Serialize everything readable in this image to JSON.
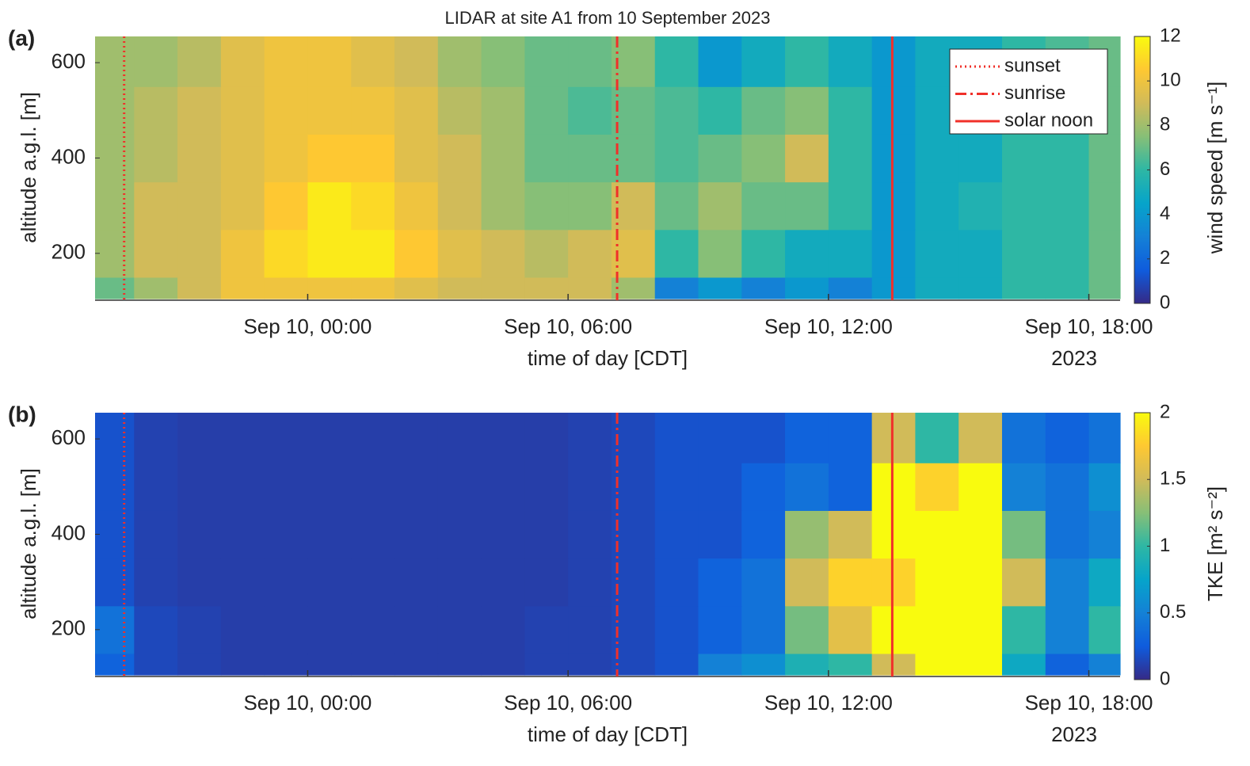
{
  "chart_data": [
    {
      "type": "heatmap",
      "panel_label": "(a)",
      "title": "LIDAR at site A1 from 10 September 2023",
      "x_edges": [
        -4.9,
        -4,
        -3,
        -2,
        -1,
        0,
        1,
        2,
        3,
        4,
        5,
        6,
        7,
        8,
        9,
        10,
        11,
        12,
        13,
        14,
        15,
        16,
        17,
        18,
        18.72
      ],
      "y_edges": [
        105,
        150,
        250,
        350,
        450,
        550,
        655
      ],
      "z": [
        [
          7,
          8,
          9,
          10,
          10,
          10,
          10,
          9.5,
          9,
          9,
          9,
          9,
          8,
          3,
          4,
          3,
          4,
          3,
          4,
          5,
          5,
          6,
          6,
          7
        ],
        [
          8,
          9,
          9,
          10,
          11,
          11.5,
          11.5,
          10.5,
          9.5,
          9,
          8.5,
          9,
          9.5,
          6,
          7.5,
          6,
          5,
          5,
          4,
          5,
          5,
          6,
          6,
          7
        ],
        [
          8,
          9,
          9,
          9.5,
          10.5,
          11.5,
          11,
          10,
          9,
          8,
          7.5,
          7.5,
          9,
          7,
          8,
          7,
          7,
          6,
          4,
          5,
          5.5,
          6,
          6,
          7
        ],
        [
          8,
          8.5,
          9,
          9.5,
          10,
          10.5,
          10.5,
          9.5,
          9,
          8,
          7,
          7,
          7,
          6.5,
          7,
          7.5,
          9,
          6,
          4,
          5,
          5,
          6,
          6,
          7
        ],
        [
          8,
          8.5,
          9,
          9.5,
          10,
          10,
          10,
          9.5,
          8.5,
          8,
          7,
          6.5,
          7,
          6.5,
          6,
          7,
          7.5,
          6,
          4,
          5,
          5,
          6,
          6,
          7
        ],
        [
          8,
          8,
          8.5,
          9.5,
          10,
          10,
          9.5,
          9,
          8,
          7.5,
          7,
          7,
          7.5,
          6,
          4,
          5,
          6,
          5,
          4,
          5,
          5,
          6,
          6.5,
          7
        ]
      ],
      "zlim": [
        0,
        12
      ],
      "colormap": [
        "#352a87",
        "#0f5cdd",
        "#1481d6",
        "#06a4ca",
        "#2eb7a4",
        "#87bf77",
        "#d1bb59",
        "#fec832",
        "#f9fb0e"
      ],
      "xlim": [
        -4.9,
        18.72
      ],
      "ylim": [
        105,
        655
      ],
      "xticks": [
        {
          "value": 0,
          "label": "Sep 10, 00:00"
        },
        {
          "value": 6,
          "label": "Sep 10, 06:00"
        },
        {
          "value": 12,
          "label": "Sep 10, 12:00"
        },
        {
          "value": 18,
          "label": "Sep 10, 18:00"
        }
      ],
      "yticks": [
        200,
        400,
        600
      ],
      "xlabel": "time of day [CDT]",
      "x_secondary_label": "2023",
      "ylabel": "altitude a.g.l. [m]",
      "colorbar_label": "wind speed [m s⁻¹]",
      "colorbar_ticks": [
        0,
        2,
        4,
        6,
        8,
        10,
        12
      ],
      "events": [
        {
          "name": "sunset",
          "x": -4.23,
          "color": "#f0302a",
          "style": "dotted"
        },
        {
          "name": "sunrise",
          "x": 7.13,
          "color": "#f0302a",
          "style": "dashdot"
        },
        {
          "name": "solar noon",
          "x": 13.47,
          "color": "#f0302a",
          "style": "solid"
        }
      ],
      "legend": "upper right"
    },
    {
      "type": "heatmap",
      "panel_label": "(b)",
      "x_edges": [
        -4.9,
        -4,
        -3,
        -2,
        -1,
        0,
        1,
        2,
        3,
        4,
        5,
        6,
        7,
        8,
        9,
        10,
        11,
        12,
        13,
        14,
        15,
        16,
        17,
        18,
        18.72
      ],
      "y_edges": [
        105,
        150,
        250,
        350,
        450,
        550,
        655
      ],
      "z": [
        [
          0.3,
          0.15,
          0.12,
          0.1,
          0.1,
          0.1,
          0.1,
          0.1,
          0.1,
          0.1,
          0.12,
          0.12,
          0.15,
          0.2,
          0.5,
          0.6,
          0.9,
          1.0,
          1.5,
          2,
          2,
          0.8,
          0.3,
          0.5
        ],
        [
          0.4,
          0.15,
          0.12,
          0.1,
          0.1,
          0.1,
          0.1,
          0.1,
          0.1,
          0.1,
          0.12,
          0.12,
          0.15,
          0.2,
          0.3,
          0.4,
          1.2,
          1.6,
          2,
          2,
          2,
          1.0,
          0.5,
          1.0
        ],
        [
          0.2,
          0.12,
          0.1,
          0.1,
          0.1,
          0.1,
          0.1,
          0.1,
          0.1,
          0.1,
          0.1,
          0.12,
          0.15,
          0.2,
          0.3,
          0.4,
          1.5,
          1.8,
          1.8,
          2,
          2,
          1.5,
          0.5,
          0.8
        ],
        [
          0.2,
          0.12,
          0.1,
          0.1,
          0.1,
          0.1,
          0.1,
          0.1,
          0.1,
          0.1,
          0.1,
          0.12,
          0.15,
          0.2,
          0.2,
          0.3,
          1.3,
          1.5,
          2,
          2,
          2,
          1.2,
          0.4,
          0.5
        ],
        [
          0.2,
          0.12,
          0.1,
          0.1,
          0.1,
          0.1,
          0.1,
          0.1,
          0.1,
          0.1,
          0.1,
          0.12,
          0.15,
          0.2,
          0.2,
          0.3,
          0.4,
          0.3,
          2,
          1.8,
          2,
          0.5,
          0.4,
          0.6
        ],
        [
          0.2,
          0.12,
          0.1,
          0.1,
          0.1,
          0.1,
          0.1,
          0.1,
          0.1,
          0.1,
          0.1,
          0.12,
          0.15,
          0.2,
          0.2,
          0.2,
          0.3,
          0.3,
          1.5,
          1,
          1.5,
          0.4,
          0.3,
          0.4
        ]
      ],
      "zlim": [
        0,
        2
      ],
      "colormap": [
        "#352a87",
        "#0f5cdd",
        "#1481d6",
        "#06a4ca",
        "#2eb7a4",
        "#87bf77",
        "#d1bb59",
        "#fec832",
        "#f9fb0e"
      ],
      "xlim": [
        -4.9,
        18.72
      ],
      "ylim": [
        105,
        655
      ],
      "xticks": [
        {
          "value": 0,
          "label": "Sep 10, 00:00"
        },
        {
          "value": 6,
          "label": "Sep 10, 06:00"
        },
        {
          "value": 12,
          "label": "Sep 10, 12:00"
        },
        {
          "value": 18,
          "label": "Sep 10, 18:00"
        }
      ],
      "yticks": [
        200,
        400,
        600
      ],
      "xlabel": "time of day [CDT]",
      "x_secondary_label": "2023",
      "ylabel": "altitude a.g.l. [m]",
      "colorbar_label": "TKE [m² s⁻²]",
      "colorbar_ticks": [
        0,
        0.5,
        1,
        1.5,
        2
      ],
      "events": [
        {
          "x": -4.23,
          "color": "#f0302a",
          "style": "dotted"
        },
        {
          "x": 7.13,
          "color": "#f0302a",
          "style": "dashdot"
        },
        {
          "x": 13.47,
          "color": "#f0302a",
          "style": "solid"
        }
      ]
    }
  ]
}
